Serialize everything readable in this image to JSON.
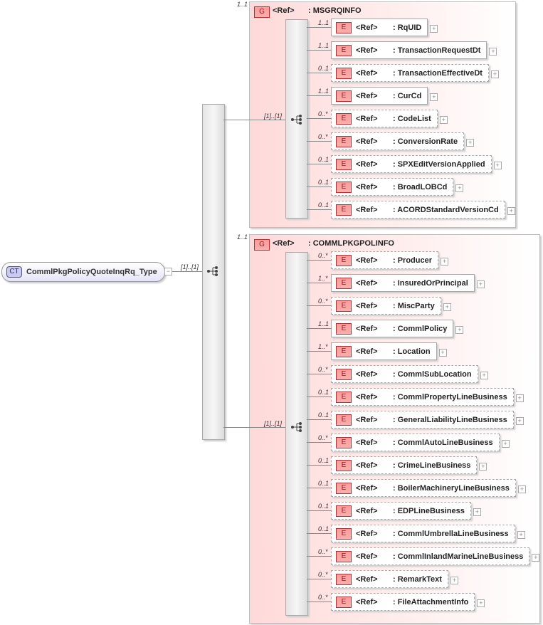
{
  "root": {
    "tag": "CT",
    "name": "CommlPkgPolicyQuoteInqRq_Type",
    "cardinality": "[1]..[1]"
  },
  "groups": [
    {
      "tag": "G",
      "ref": "<Ref>",
      "name": ": MSGRQINFO",
      "occurs": "1..1",
      "cardinality": "[1]..[1]",
      "elements": [
        {
          "occurs": "1..1",
          "name": ": RqUID",
          "optional": false
        },
        {
          "occurs": "1..1",
          "name": ": TransactionRequestDt",
          "optional": false
        },
        {
          "occurs": "0..1",
          "name": ": TransactionEffectiveDt",
          "optional": true
        },
        {
          "occurs": "1..1",
          "name": ": CurCd",
          "optional": false
        },
        {
          "occurs": "0..*",
          "name": ": CodeList",
          "optional": true
        },
        {
          "occurs": "0..*",
          "name": ": ConversionRate",
          "optional": true
        },
        {
          "occurs": "0..1",
          "name": ": SPXEditVersionApplied",
          "optional": true
        },
        {
          "occurs": "0..1",
          "name": ": BroadLOBCd",
          "optional": true
        },
        {
          "occurs": "0..1",
          "name": ": ACORDStandardVersionCd",
          "optional": true
        }
      ]
    },
    {
      "tag": "G",
      "ref": "<Ref>",
      "name": ": COMMLPKGPOLINFO",
      "occurs": "1..1",
      "cardinality": "[1]..[1]",
      "elements": [
        {
          "occurs": "0..*",
          "name": ": Producer",
          "optional": true
        },
        {
          "occurs": "1..*",
          "name": ": InsuredOrPrincipal",
          "optional": false
        },
        {
          "occurs": "0..*",
          "name": ": MiscParty",
          "optional": true
        },
        {
          "occurs": "1..1",
          "name": ": CommlPolicy",
          "optional": false
        },
        {
          "occurs": "1..*",
          "name": ": Location",
          "optional": false
        },
        {
          "occurs": "0..*",
          "name": ": CommlSubLocation",
          "optional": true
        },
        {
          "occurs": "0..1",
          "name": ": CommlPropertyLineBusiness",
          "optional": true
        },
        {
          "occurs": "0..1",
          "name": ": GeneralLiabilityLineBusiness",
          "optional": true
        },
        {
          "occurs": "0..*",
          "name": ": CommlAutoLineBusiness",
          "optional": true
        },
        {
          "occurs": "0..1",
          "name": ": CrimeLineBusiness",
          "optional": true
        },
        {
          "occurs": "0..1",
          "name": ": BoilerMachineryLineBusiness",
          "optional": true
        },
        {
          "occurs": "0..1",
          "name": ": EDPLineBusiness",
          "optional": true
        },
        {
          "occurs": "0..1",
          "name": ": CommlUmbrellaLineBusiness",
          "optional": true
        },
        {
          "occurs": "0..*",
          "name": ": CommlInlandMarineLineBusiness",
          "optional": true
        },
        {
          "occurs": "0..*",
          "name": ": RemarkText",
          "optional": true
        },
        {
          "occurs": "0..*",
          "name": ": FileAttachmentInfo",
          "optional": true
        }
      ]
    }
  ],
  "element_tag": "E",
  "ref_label": "<Ref>",
  "expand_symbol": "+",
  "collapse_symbol": "−"
}
